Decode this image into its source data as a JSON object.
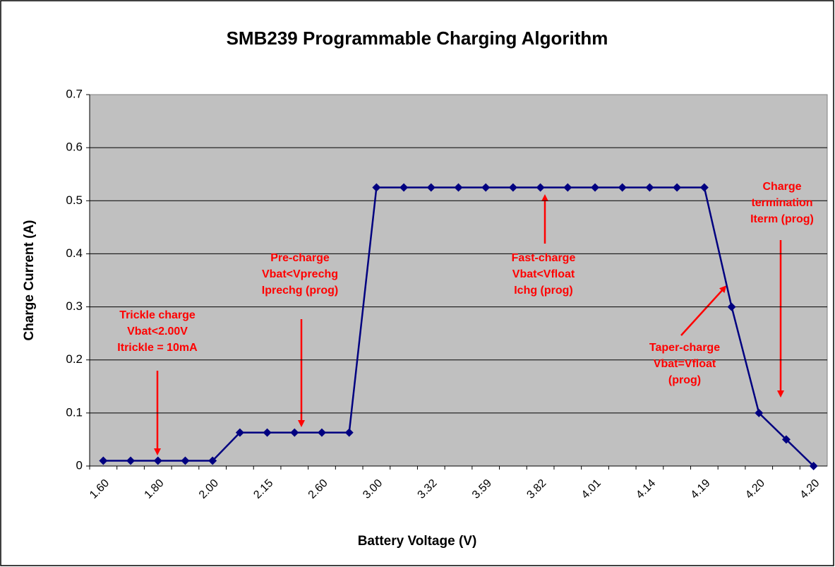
{
  "chart_data": {
    "type": "line",
    "title": "SMB239 Programmable Charging Algorithm",
    "x_label": "Battery Voltage (V)",
    "y_label": "Charge Current (A)",
    "categories": [
      "1.60",
      null,
      "1.80",
      null,
      "2.00",
      null,
      "2.15",
      null,
      "2.60",
      null,
      "3.00",
      null,
      "3.32",
      null,
      "3.59",
      null,
      "3.82",
      null,
      "4.01",
      null,
      "4.14",
      null,
      "4.19",
      null,
      "4.20",
      null,
      "4.20"
    ],
    "series": [
      {
        "name": "Charge Current",
        "color": "#000080",
        "values": [
          0.01,
          0.01,
          0.01,
          0.01,
          0.01,
          0.063,
          0.063,
          0.063,
          0.063,
          0.063,
          0.525,
          0.525,
          0.525,
          0.525,
          0.525,
          0.525,
          0.525,
          0.525,
          0.525,
          0.525,
          0.525,
          0.525,
          0.525,
          0.3,
          0.1,
          0.05,
          0
        ]
      }
    ],
    "ylim": [
      0,
      0.7
    ],
    "yticks": [
      0,
      0.1,
      0.2,
      0.3,
      0.4,
      0.5,
      0.6,
      0.7
    ],
    "grid": true,
    "annotations": [
      {
        "lines": [
          "Trickle charge",
          "Vbat<2.00V",
          "Itrickle = 10mA"
        ]
      },
      {
        "lines": [
          "Pre-charge",
          "Vbat<Vprechg",
          "Iprechg (prog)"
        ]
      },
      {
        "lines": [
          "Fast-charge",
          "Vbat<Vfloat",
          "Ichg (prog)"
        ]
      },
      {
        "lines": [
          "Taper-charge",
          "Vbat=Vfloat",
          "(prog)"
        ]
      },
      {
        "lines": [
          "Charge",
          "termination",
          "Iterm (prog)"
        ]
      }
    ]
  }
}
